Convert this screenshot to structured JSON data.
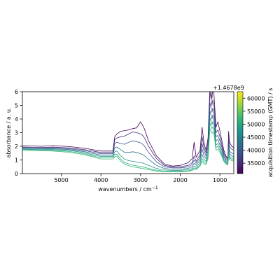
{
  "chart_data": {
    "type": "line",
    "xlabel": "wavenumbers / cm",
    "xlabel_sup": "−1",
    "ylabel": "absorbance / a. u.",
    "xlim": [
      5980,
      650
    ],
    "x_inverted": true,
    "ylim": [
      0,
      6
    ],
    "xticks": [
      5000,
      4000,
      3000,
      2000,
      1000
    ],
    "xtick_labels": [
      "5000",
      "4000",
      "3000",
      "2000",
      "1000"
    ],
    "yticks": [
      0,
      1,
      2,
      3,
      4,
      5,
      6
    ],
    "ytick_labels": [
      "0",
      "1",
      "2",
      "3",
      "4",
      "5",
      "6"
    ],
    "grid": false,
    "colorbar": {
      "label": "acquisition timestamp (GMT) / s",
      "offset_text": "+1.4678e9",
      "range": [
        31000,
        62500
      ],
      "ticks": [
        35000,
        40000,
        45000,
        50000,
        55000,
        60000
      ],
      "tick_labels": [
        "35000",
        "40000",
        "45000",
        "50000",
        "55000",
        "60000"
      ],
      "colormap": "viridis",
      "colormap_stops": [
        "#440154",
        "#482878",
        "#3e4989",
        "#31688e",
        "#26828e",
        "#1f9e89",
        "#35b779",
        "#6ece58",
        "#b5de2b",
        "#fde725"
      ]
    },
    "series": [
      {
        "timestamp": 31500,
        "color": "#440154",
        "x": [
          5980,
          5500,
          5200,
          4800,
          4400,
          4000,
          3700,
          3650,
          3600,
          3500,
          3400,
          3300,
          3200,
          3100,
          3000,
          2950,
          2900,
          2800,
          2600,
          2400,
          2200,
          2000,
          1900,
          1800,
          1700,
          1650,
          1600,
          1500,
          1450,
          1400,
          1350,
          1300,
          1250,
          1200,
          1180,
          1150,
          1100,
          1050,
          1000,
          950,
          900,
          850,
          800,
          780,
          760,
          740,
          700,
          650
        ],
        "y": [
          2.05,
          2.0,
          2.05,
          1.98,
          1.85,
          1.65,
          1.65,
          2.7,
          2.9,
          3.1,
          3.15,
          3.2,
          3.3,
          3.35,
          3.8,
          3.55,
          3.25,
          2.4,
          1.3,
          0.7,
          0.55,
          0.6,
          0.7,
          0.8,
          1.1,
          2.3,
          1.2,
          1.7,
          3.4,
          2.2,
          1.7,
          2.6,
          6.5,
          5.5,
          6.3,
          5.8,
          3.4,
          3.8,
          3.1,
          2.4,
          1.7,
          1.3,
          1.1,
          3.1,
          2.3,
          2.2,
          2.0,
          1.9
        ]
      },
      {
        "timestamp": 33500,
        "color": "#472d7b",
        "x": [
          5980,
          5500,
          5200,
          4800,
          4400,
          4000,
          3700,
          3650,
          3600,
          3500,
          3400,
          3300,
          3200,
          3100,
          3000,
          2950,
          2900,
          2800,
          2600,
          2400,
          2200,
          2000,
          1900,
          1800,
          1700,
          1650,
          1600,
          1500,
          1450,
          1400,
          1350,
          1300,
          1250,
          1200,
          1180,
          1150,
          1100,
          1050,
          1000,
          950,
          900,
          850,
          800,
          780,
          760,
          740,
          700,
          650
        ],
        "y": [
          1.95,
          1.92,
          1.94,
          1.88,
          1.75,
          1.55,
          1.55,
          2.5,
          2.6,
          2.7,
          2.75,
          2.9,
          3.05,
          3.0,
          2.9,
          2.8,
          2.6,
          2.0,
          1.1,
          0.6,
          0.5,
          0.5,
          0.55,
          0.6,
          0.8,
          1.3,
          0.9,
          1.4,
          2.7,
          1.9,
          1.5,
          2.3,
          6.0,
          5.0,
          5.4,
          5.0,
          3.0,
          3.2,
          2.7,
          2.1,
          1.5,
          1.2,
          1.0,
          2.6,
          2.0,
          1.9,
          1.8,
          1.7
        ]
      },
      {
        "timestamp": 37000,
        "color": "#3b528b",
        "x": [
          5980,
          5500,
          5200,
          4800,
          4400,
          4000,
          3700,
          3650,
          3600,
          3500,
          3400,
          3300,
          3200,
          3100,
          3000,
          2950,
          2900,
          2800,
          2600,
          2400,
          2200,
          2000,
          1900,
          1800,
          1700,
          1650,
          1600,
          1500,
          1450,
          1400,
          1350,
          1300,
          1250,
          1200,
          1180,
          1150,
          1100,
          1050,
          1000,
          950,
          900,
          850,
          800,
          780,
          760,
          740,
          700,
          650
        ],
        "y": [
          1.9,
          1.87,
          1.88,
          1.82,
          1.68,
          1.45,
          1.45,
          2.2,
          2.3,
          2.2,
          2.15,
          2.3,
          2.4,
          2.35,
          2.25,
          2.15,
          2.0,
          1.55,
          0.85,
          0.5,
          0.42,
          0.42,
          0.45,
          0.5,
          0.65,
          1.0,
          0.75,
          1.2,
          2.2,
          1.6,
          1.3,
          2.0,
          5.2,
          4.5,
          4.8,
          4.4,
          2.7,
          2.8,
          2.4,
          1.9,
          1.35,
          1.05,
          0.9,
          2.2,
          1.7,
          1.6,
          1.5,
          1.45
        ]
      },
      {
        "timestamp": 41000,
        "color": "#2c728e",
        "x": [
          5980,
          5500,
          5200,
          4800,
          4400,
          4000,
          3700,
          3650,
          3600,
          3500,
          3400,
          3300,
          3200,
          3100,
          3000,
          2950,
          2900,
          2800,
          2600,
          2400,
          2200,
          2000,
          1900,
          1800,
          1700,
          1650,
          1600,
          1500,
          1450,
          1400,
          1350,
          1300,
          1250,
          1200,
          1180,
          1150,
          1100,
          1050,
          1000,
          950,
          900,
          850,
          800,
          780,
          760,
          740,
          700,
          650
        ],
        "y": [
          1.85,
          1.82,
          1.82,
          1.76,
          1.6,
          1.35,
          1.35,
          1.9,
          1.95,
          1.75,
          1.55,
          1.55,
          1.6,
          1.55,
          1.45,
          1.4,
          1.3,
          1.05,
          0.6,
          0.38,
          0.33,
          0.33,
          0.35,
          0.38,
          0.5,
          0.75,
          0.6,
          1.0,
          1.8,
          1.3,
          1.1,
          1.7,
          4.6,
          4.0,
          4.3,
          3.9,
          2.4,
          2.5,
          2.1,
          1.7,
          1.2,
          0.95,
          0.8,
          1.9,
          1.5,
          1.4,
          1.3,
          1.25
        ]
      },
      {
        "timestamp": 45000,
        "color": "#21918c",
        "x": [
          5980,
          5500,
          5200,
          4800,
          4400,
          4000,
          3700,
          3650,
          3600,
          3500,
          3400,
          3300,
          3200,
          3100,
          3000,
          2950,
          2900,
          2800,
          2600,
          2400,
          2200,
          2000,
          1900,
          1800,
          1700,
          1650,
          1600,
          1500,
          1450,
          1400,
          1350,
          1300,
          1250,
          1200,
          1180,
          1150,
          1100,
          1050,
          1000,
          950,
          900,
          850,
          800,
          780,
          760,
          740,
          700,
          650
        ],
        "y": [
          1.8,
          1.77,
          1.76,
          1.7,
          1.52,
          1.25,
          1.25,
          1.6,
          1.65,
          1.3,
          1.05,
          0.95,
          0.9,
          0.85,
          0.8,
          0.78,
          0.72,
          0.6,
          0.38,
          0.26,
          0.24,
          0.24,
          0.26,
          0.28,
          0.38,
          0.55,
          0.45,
          0.8,
          1.4,
          1.05,
          0.9,
          1.45,
          4.1,
          3.6,
          3.8,
          3.5,
          2.1,
          2.2,
          1.9,
          1.5,
          1.05,
          0.85,
          0.72,
          1.6,
          1.3,
          1.2,
          1.15,
          1.1
        ]
      },
      {
        "timestamp": 49000,
        "color": "#28ae80",
        "x": [
          5980,
          5500,
          5200,
          4800,
          4400,
          4000,
          3700,
          3650,
          3600,
          3500,
          3400,
          3300,
          3200,
          3100,
          3000,
          2950,
          2900,
          2800,
          2600,
          2400,
          2200,
          2000,
          1900,
          1800,
          1700,
          1650,
          1600,
          1500,
          1450,
          1400,
          1350,
          1300,
          1250,
          1200,
          1180,
          1150,
          1100,
          1050,
          1000,
          950,
          900,
          850,
          800,
          780,
          760,
          740,
          700,
          650
        ],
        "y": [
          1.76,
          1.72,
          1.7,
          1.62,
          1.44,
          1.15,
          1.15,
          1.4,
          1.42,
          1.05,
          0.8,
          0.7,
          0.62,
          0.57,
          0.52,
          0.5,
          0.46,
          0.38,
          0.25,
          0.18,
          0.17,
          0.17,
          0.19,
          0.21,
          0.28,
          0.42,
          0.35,
          0.65,
          1.1,
          0.85,
          0.75,
          1.25,
          3.7,
          3.3,
          3.4,
          3.2,
          1.9,
          2.0,
          1.7,
          1.35,
          0.95,
          0.78,
          0.66,
          1.4,
          1.15,
          1.1,
          1.05,
          1.0
        ]
      },
      {
        "timestamp": 54000,
        "color": "#3fbc73",
        "x": [
          5980,
          5500,
          5200,
          4800,
          4400,
          4000,
          3700,
          3650,
          3600,
          3500,
          3400,
          3300,
          3200,
          3100,
          3000,
          2950,
          2900,
          2800,
          2600,
          2400,
          2200,
          2000,
          1900,
          1800,
          1700,
          1650,
          1600,
          1500,
          1450,
          1400,
          1350,
          1300,
          1250,
          1200,
          1180,
          1150,
          1100,
          1050,
          1000,
          950,
          900,
          850,
          800,
          780,
          760,
          740,
          700,
          650
        ],
        "y": [
          1.72,
          1.68,
          1.65,
          1.56,
          1.38,
          1.07,
          1.07,
          1.25,
          1.28,
          0.9,
          0.68,
          0.58,
          0.5,
          0.45,
          0.4,
          0.38,
          0.35,
          0.29,
          0.19,
          0.14,
          0.13,
          0.13,
          0.15,
          0.17,
          0.22,
          0.34,
          0.3,
          0.55,
          0.9,
          0.72,
          0.65,
          1.1,
          3.3,
          2.95,
          3.05,
          2.9,
          1.7,
          1.8,
          1.55,
          1.25,
          0.88,
          0.72,
          0.62,
          1.25,
          1.05,
          1.0,
          0.95,
          0.92
        ]
      }
    ]
  }
}
